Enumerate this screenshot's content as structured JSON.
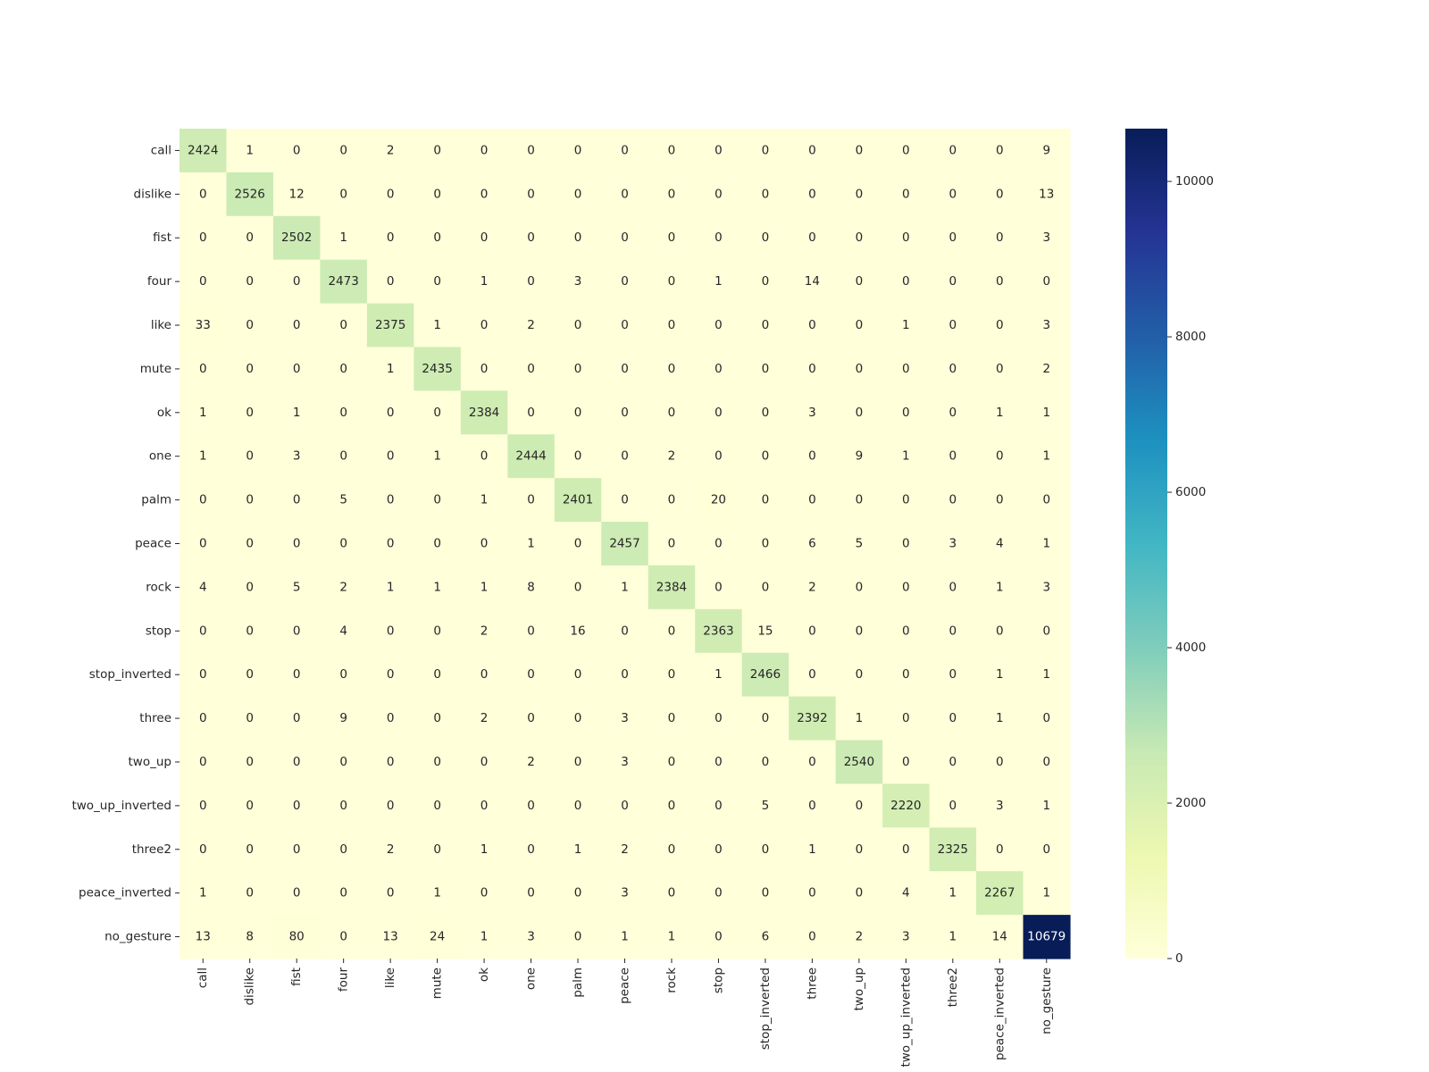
{
  "chart_data": {
    "type": "heatmap",
    "title": "",
    "xlabel": "",
    "ylabel": "",
    "row_labels": [
      "call",
      "dislike",
      "fist",
      "four",
      "like",
      "mute",
      "ok",
      "one",
      "palm",
      "peace",
      "rock",
      "stop",
      "stop_inverted",
      "three",
      "two_up",
      "two_up_inverted",
      "three2",
      "peace_inverted",
      "no_gesture"
    ],
    "col_labels": [
      "call",
      "dislike",
      "fist",
      "four",
      "like",
      "mute",
      "ok",
      "one",
      "palm",
      "peace",
      "rock",
      "stop",
      "stop_inverted",
      "three",
      "two_up",
      "two_up_inverted",
      "three2",
      "peace_inverted",
      "no_gesture"
    ],
    "values": [
      [
        2424,
        1,
        0,
        0,
        2,
        0,
        0,
        0,
        0,
        0,
        0,
        0,
        0,
        0,
        0,
        0,
        0,
        0,
        9
      ],
      [
        0,
        2526,
        12,
        0,
        0,
        0,
        0,
        0,
        0,
        0,
        0,
        0,
        0,
        0,
        0,
        0,
        0,
        0,
        13
      ],
      [
        0,
        0,
        2502,
        1,
        0,
        0,
        0,
        0,
        0,
        0,
        0,
        0,
        0,
        0,
        0,
        0,
        0,
        0,
        3
      ],
      [
        0,
        0,
        0,
        2473,
        0,
        0,
        1,
        0,
        3,
        0,
        0,
        1,
        0,
        14,
        0,
        0,
        0,
        0,
        0
      ],
      [
        33,
        0,
        0,
        0,
        2375,
        1,
        0,
        2,
        0,
        0,
        0,
        0,
        0,
        0,
        0,
        1,
        0,
        0,
        3
      ],
      [
        0,
        0,
        0,
        0,
        1,
        2435,
        0,
        0,
        0,
        0,
        0,
        0,
        0,
        0,
        0,
        0,
        0,
        0,
        2
      ],
      [
        1,
        0,
        1,
        0,
        0,
        0,
        2384,
        0,
        0,
        0,
        0,
        0,
        0,
        3,
        0,
        0,
        0,
        1,
        1
      ],
      [
        1,
        0,
        3,
        0,
        0,
        1,
        0,
        2444,
        0,
        0,
        2,
        0,
        0,
        0,
        9,
        1,
        0,
        0,
        1
      ],
      [
        0,
        0,
        0,
        5,
        0,
        0,
        1,
        0,
        2401,
        0,
        0,
        20,
        0,
        0,
        0,
        0,
        0,
        0,
        0
      ],
      [
        0,
        0,
        0,
        0,
        0,
        0,
        0,
        1,
        0,
        2457,
        0,
        0,
        0,
        6,
        5,
        0,
        3,
        4,
        1
      ],
      [
        4,
        0,
        5,
        2,
        1,
        1,
        1,
        8,
        0,
        1,
        2384,
        0,
        0,
        2,
        0,
        0,
        0,
        1,
        3
      ],
      [
        0,
        0,
        0,
        4,
        0,
        0,
        2,
        0,
        16,
        0,
        0,
        2363,
        15,
        0,
        0,
        0,
        0,
        0,
        0
      ],
      [
        0,
        0,
        0,
        0,
        0,
        0,
        0,
        0,
        0,
        0,
        0,
        1,
        2466,
        0,
        0,
        0,
        0,
        1,
        1
      ],
      [
        0,
        0,
        0,
        9,
        0,
        0,
        2,
        0,
        0,
        3,
        0,
        0,
        0,
        2392,
        1,
        0,
        0,
        1,
        0
      ],
      [
        0,
        0,
        0,
        0,
        0,
        0,
        0,
        2,
        0,
        3,
        0,
        0,
        0,
        0,
        2540,
        0,
        0,
        0,
        0
      ],
      [
        0,
        0,
        0,
        0,
        0,
        0,
        0,
        0,
        0,
        0,
        0,
        0,
        5,
        0,
        0,
        2220,
        0,
        3,
        1
      ],
      [
        0,
        0,
        0,
        0,
        2,
        0,
        1,
        0,
        1,
        2,
        0,
        0,
        0,
        1,
        0,
        0,
        2325,
        0,
        0
      ],
      [
        1,
        0,
        0,
        0,
        0,
        1,
        0,
        0,
        0,
        3,
        0,
        0,
        0,
        0,
        0,
        4,
        1,
        2267,
        1
      ],
      [
        13,
        8,
        80,
        0,
        13,
        24,
        1,
        3,
        0,
        1,
        1,
        0,
        6,
        0,
        2,
        3,
        1,
        14,
        10679
      ]
    ],
    "colormap": "YlGnBu",
    "vmin": 0,
    "vmax": 10679,
    "colorbar_ticks": [
      0,
      2000,
      4000,
      6000,
      8000,
      10000
    ],
    "annotations": "cell counts"
  }
}
